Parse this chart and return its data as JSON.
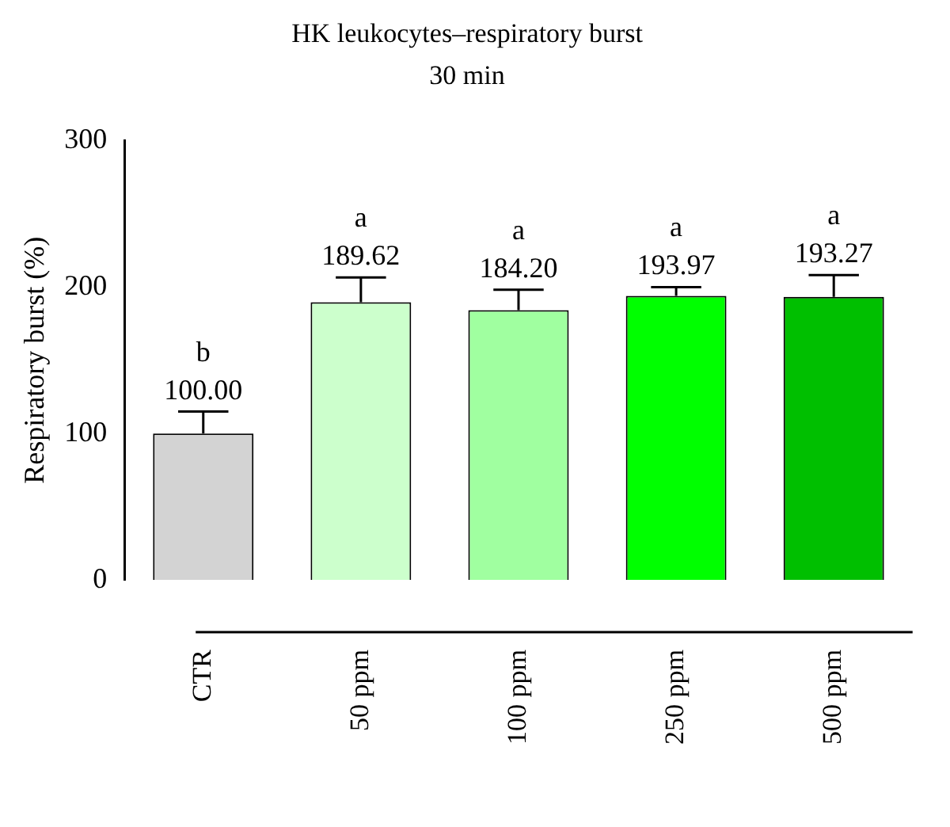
{
  "chart_data": {
    "type": "bar",
    "title": "HK leukocytes–respiratory burst",
    "subtitle": "30 min",
    "ylabel": "Respiratory burst (%)",
    "categories": [
      "CTR",
      "50 ppm",
      "100 ppm",
      "250 ppm",
      "500 ppm"
    ],
    "values": [
      100.0,
      189.62,
      184.2,
      193.97,
      193.27
    ],
    "colors": [
      "#d3d3d3",
      "#ccffcc",
      "#a0ffa0",
      "#00ff00",
      "#00bf00"
    ],
    "errors": [
      15,
      17,
      14,
      6,
      15
    ],
    "value_labels": [
      "100.00",
      "189.62",
      "184.20",
      "193.97",
      "193.27"
    ],
    "annotations": [
      "b",
      "a",
      "a",
      "a",
      "a"
    ],
    "ylim": [
      0,
      300
    ],
    "yticks": [
      0,
      100,
      200,
      300
    ],
    "grid": false,
    "legend": false
  }
}
